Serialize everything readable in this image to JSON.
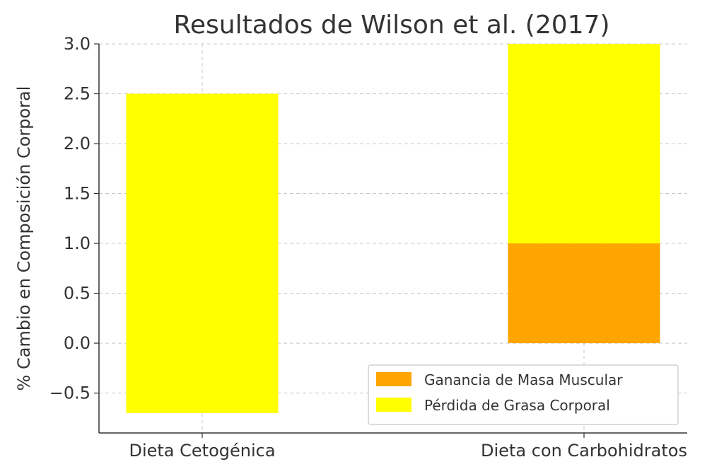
{
  "chart_data": {
    "type": "bar",
    "title": "Resultados de Wilson et al. (2017)",
    "xlabel": "",
    "ylabel": "% Cambio en Composición Corporal",
    "categories": [
      "Dieta Cetogénica",
      "Dieta con Carbohidratos"
    ],
    "series": [
      {
        "name": "Ganancia de Masa Muscular",
        "color": "#ffa500",
        "base": [
          0,
          0
        ],
        "values": [
          0,
          1.0
        ]
      },
      {
        "name": "Pérdida de Grasa Corporal",
        "color": "#ffff00",
        "base": [
          -0.7,
          1.0
        ],
        "values": [
          3.2,
          2.0
        ]
      }
    ],
    "ylim": [
      -0.9,
      3.0
    ],
    "yticks": [
      -0.5,
      0.0,
      0.5,
      1.0,
      1.5,
      2.0,
      2.5,
      3.0
    ],
    "ytick_labels": [
      "−0.5",
      "0.0",
      "0.5",
      "1.0",
      "1.5",
      "2.0",
      "2.5",
      "3.0"
    ],
    "grid": true,
    "legend_position": "lower-right"
  }
}
